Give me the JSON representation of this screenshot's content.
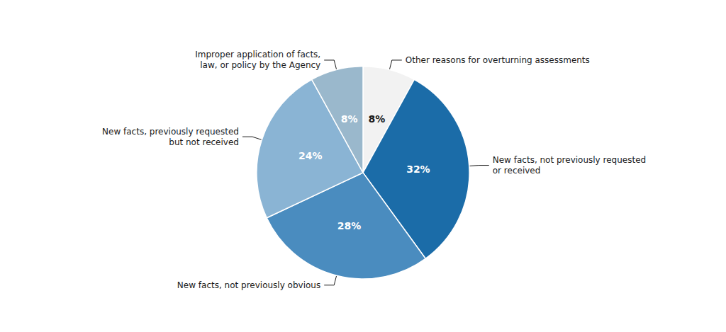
{
  "chart_data": {
    "type": "pie",
    "categories": [
      "Other reasons for overturning assessments",
      "New facts, not previously requested\nor received",
      "New facts, not previously obvious",
      "New facts, previously requested\nbut not received",
      "Improper application of facts,\nlaw, or policy by the Agency"
    ],
    "values": [
      8,
      32,
      28,
      24,
      8
    ],
    "value_labels": [
      "8%",
      "32%",
      "28%",
      "24%",
      "8%"
    ],
    "colors": [
      "#f2f2f2",
      "#1b6ca8",
      "#4a8cbf",
      "#8ab4d4",
      "#9ab8cc"
    ],
    "data_labels": true
  }
}
